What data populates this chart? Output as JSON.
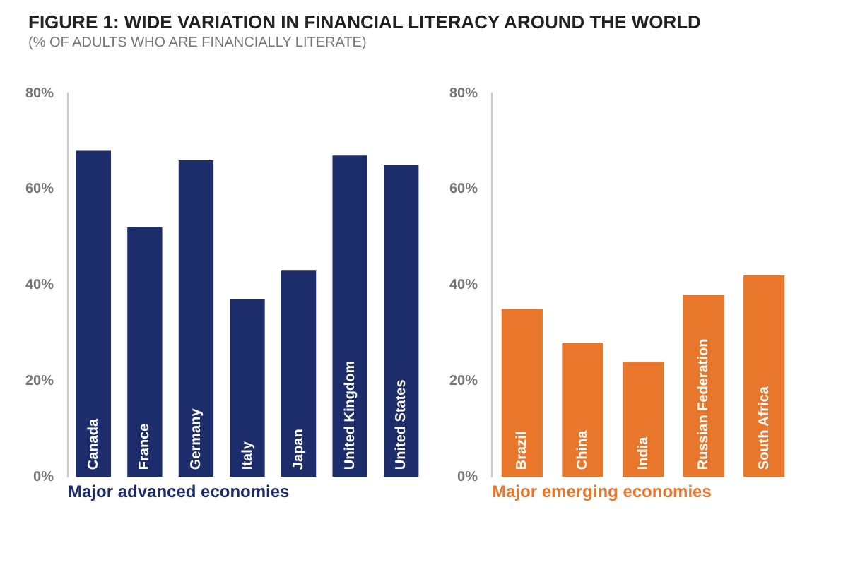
{
  "chart_data": [
    {
      "type": "bar",
      "title": "FIGURE 1: WIDE VARIATION IN FINANCIAL LITERACY AROUND THE WORLD",
      "subtitle": "(% OF ADULTS WHO ARE FINANCIALLY LITERATE)",
      "xlabel": "Major advanced economies",
      "categories": [
        "Canada",
        "France",
        "Germany",
        "Italy",
        "Japan",
        "United Kingdom",
        "United States"
      ],
      "values": [
        68,
        52,
        66,
        37,
        43,
        67,
        65
      ],
      "color": "#1d2d6b",
      "ylim": [
        0,
        80
      ],
      "yticks": [
        {
          "value": 0,
          "label": "0%"
        },
        {
          "value": 20,
          "label": "20%"
        },
        {
          "value": 40,
          "label": "40%"
        },
        {
          "value": 60,
          "label": "60%"
        },
        {
          "value": 80,
          "label": "80%"
        }
      ],
      "grid": false,
      "legend": false
    },
    {
      "type": "bar",
      "xlabel": "Major emerging economies",
      "categories": [
        "Brazil",
        "China",
        "India",
        "Russian Federation",
        "South Africa"
      ],
      "values": [
        35,
        28,
        24,
        38,
        42
      ],
      "color": "#e8762b",
      "ylim": [
        0,
        80
      ],
      "yticks": [
        {
          "value": 0,
          "label": "0%"
        },
        {
          "value": 20,
          "label": "20%"
        },
        {
          "value": 40,
          "label": "40%"
        },
        {
          "value": 60,
          "label": "60%"
        },
        {
          "value": 80,
          "label": "80%"
        }
      ],
      "grid": false,
      "legend": false
    }
  ]
}
